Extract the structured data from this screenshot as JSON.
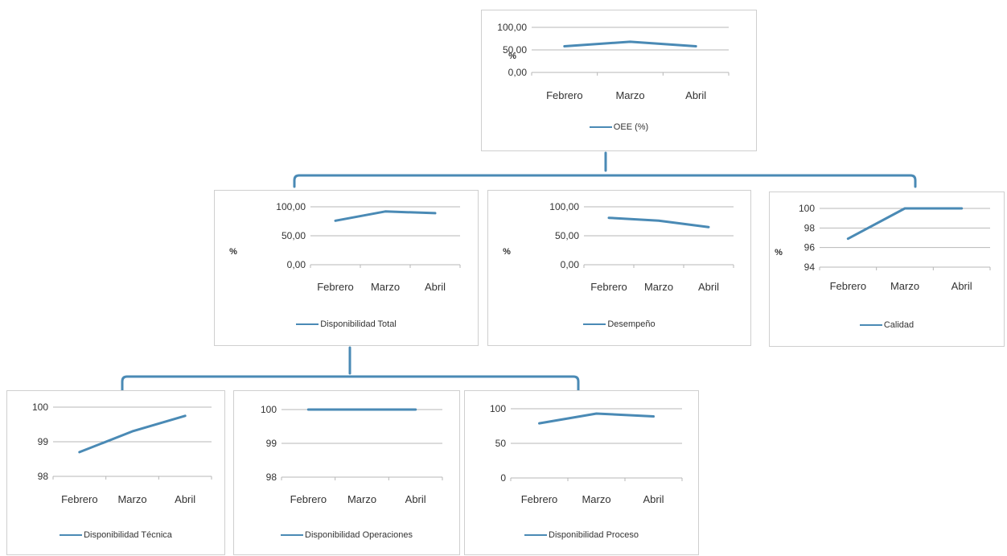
{
  "colors": {
    "series": "#4a8ab5",
    "connector": "#4a8ab5",
    "grid": "#b7b7b7",
    "text": "#333333"
  },
  "chart_data": [
    {
      "id": "oee",
      "type": "line",
      "categories": [
        "Febrero",
        "Marzo",
        "Abril"
      ],
      "series": [
        {
          "name": "OEE (%)",
          "values": [
            58,
            68,
            58
          ]
        }
      ],
      "ylabel": "%",
      "ylim": [
        0,
        100
      ],
      "yticks": [
        "100,00",
        "50,00",
        "0,00"
      ],
      "grid": true,
      "legend": "bottom"
    },
    {
      "id": "disponibilidad-total",
      "type": "line",
      "categories": [
        "Febrero",
        "Marzo",
        "Abril"
      ],
      "series": [
        {
          "name": "Disponibilidad Total",
          "values": [
            76,
            92,
            89
          ]
        }
      ],
      "ylabel": "%",
      "ylim": [
        0,
        100
      ],
      "yticks": [
        "100,00",
        "50,00",
        "0,00"
      ],
      "grid": true,
      "legend": "bottom"
    },
    {
      "id": "desempeno",
      "type": "line",
      "categories": [
        "Febrero",
        "Marzo",
        "Abril"
      ],
      "series": [
        {
          "name": "Desempeño",
          "values": [
            81,
            76,
            65
          ]
        }
      ],
      "ylabel": "%",
      "ylim": [
        0,
        100
      ],
      "yticks": [
        "100,00",
        "50,00",
        "0,00"
      ],
      "grid": true,
      "legend": "bottom"
    },
    {
      "id": "calidad",
      "type": "line",
      "categories": [
        "Febrero",
        "Marzo",
        "Abril"
      ],
      "series": [
        {
          "name": "Calidad",
          "values": [
            96.9,
            100,
            100
          ]
        }
      ],
      "ylabel": "%",
      "ylim": [
        94,
        100
      ],
      "yticks": [
        "100",
        "98",
        "96",
        "94"
      ],
      "grid": true,
      "legend": "bottom"
    },
    {
      "id": "disponibilidad-tecnica",
      "type": "line",
      "categories": [
        "Febrero",
        "Marzo",
        "Abril"
      ],
      "series": [
        {
          "name": "Disponibilidad Técnica",
          "values": [
            98.7,
            99.3,
            99.75
          ]
        }
      ],
      "ylabel": "",
      "ylim": [
        98,
        100
      ],
      "yticks": [
        "100",
        "99",
        "98"
      ],
      "grid": true,
      "legend": "bottom"
    },
    {
      "id": "disponibilidad-operaciones",
      "type": "line",
      "categories": [
        "Febrero",
        "Marzo",
        "Abril"
      ],
      "series": [
        {
          "name": "Disponibilidad Operaciones",
          "values": [
            100,
            100,
            100
          ]
        }
      ],
      "ylabel": "",
      "ylim": [
        98,
        100
      ],
      "yticks": [
        "100",
        "99",
        "98"
      ],
      "grid": true,
      "legend": "bottom"
    },
    {
      "id": "disponibilidad-proceso",
      "type": "line",
      "categories": [
        "Febrero",
        "Marzo",
        "Abril"
      ],
      "series": [
        {
          "name": "Disponibilidad Proceso",
          "values": [
            79,
            93,
            89
          ]
        }
      ],
      "ylabel": "",
      "ylim": [
        0,
        100
      ],
      "yticks": [
        "100",
        "50",
        "0"
      ],
      "grid": true,
      "legend": "bottom"
    }
  ]
}
